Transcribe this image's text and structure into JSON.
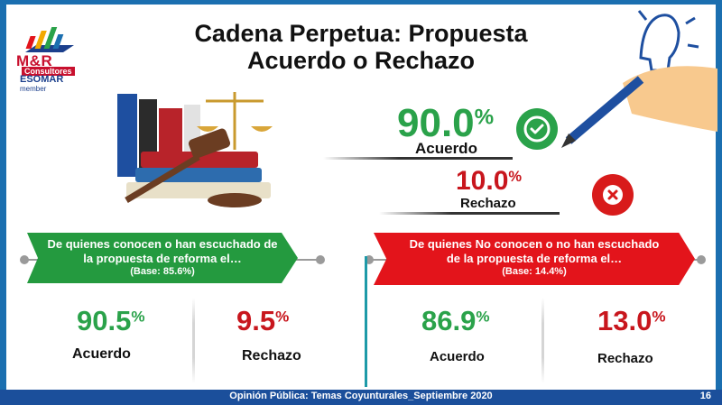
{
  "header": {
    "title_line1": "Cadena Perpetua: Propuesta",
    "title_line2": "Acuerdo o Rechazo"
  },
  "logo": {
    "brand": "M&R",
    "subtitle": "Consultores",
    "association": "ESOMAR",
    "association_note": "member"
  },
  "overall": {
    "acuerdo_value": "90.0",
    "acuerdo_label": "Acuerdo",
    "rechazo_value": "10.0",
    "rechazo_label": "Rechazo",
    "acuerdo_color": "#2aa24a",
    "rechazo_color": "#c8161d"
  },
  "segment_known": {
    "banner_line1": "De quienes conocen o han escuchado de",
    "banner_line2": "la propuesta de reforma el…",
    "base": "(Base: 85.6%)",
    "acuerdo_value": "90.5",
    "acuerdo_label": "Acuerdo",
    "rechazo_value": "9.5",
    "rechazo_label": "Rechazo",
    "banner_color": "#249a3f"
  },
  "segment_unknown": {
    "banner_line1": "De quienes No conocen o no han escuchado",
    "banner_line2": "de la propuesta de reforma el…",
    "base": "(Base: 14.4%)",
    "acuerdo_value": "86.9",
    "acuerdo_label": "Acuerdo",
    "rechazo_value": "13.0",
    "rechazo_label": "Rechazo",
    "banner_color": "#e3141b"
  },
  "percent_sign": "%",
  "footer": {
    "text": "Opinión Pública: Temas Coyunturales_Septiembre 2020",
    "page": "16"
  },
  "chart_data": [
    {
      "type": "table",
      "categories": [
        "Acuerdo",
        "Rechazo"
      ],
      "series": [
        {
          "values": [
            90.0,
            10.0
          ]
        }
      ]
    },
    {
      "type": "table",
      "title": "De quienes conocen o han escuchado de la propuesta de reforma el…",
      "subtitle": "(Base: 85.6%)",
      "categories": [
        "Acuerdo",
        "Rechazo"
      ],
      "series": [
        {
          "values": [
            90.5,
            9.5
          ]
        }
      ]
    },
    {
      "type": "table",
      "title": "De quienes No conocen o no han escuchado de la propuesta de reforma el…",
      "subtitle": "(Base: 14.4%)",
      "categories": [
        "Acuerdo",
        "Rechazo"
      ],
      "series": [
        {
          "values": [
            86.9,
            13.0
          ]
        }
      ]
    }
  ]
}
